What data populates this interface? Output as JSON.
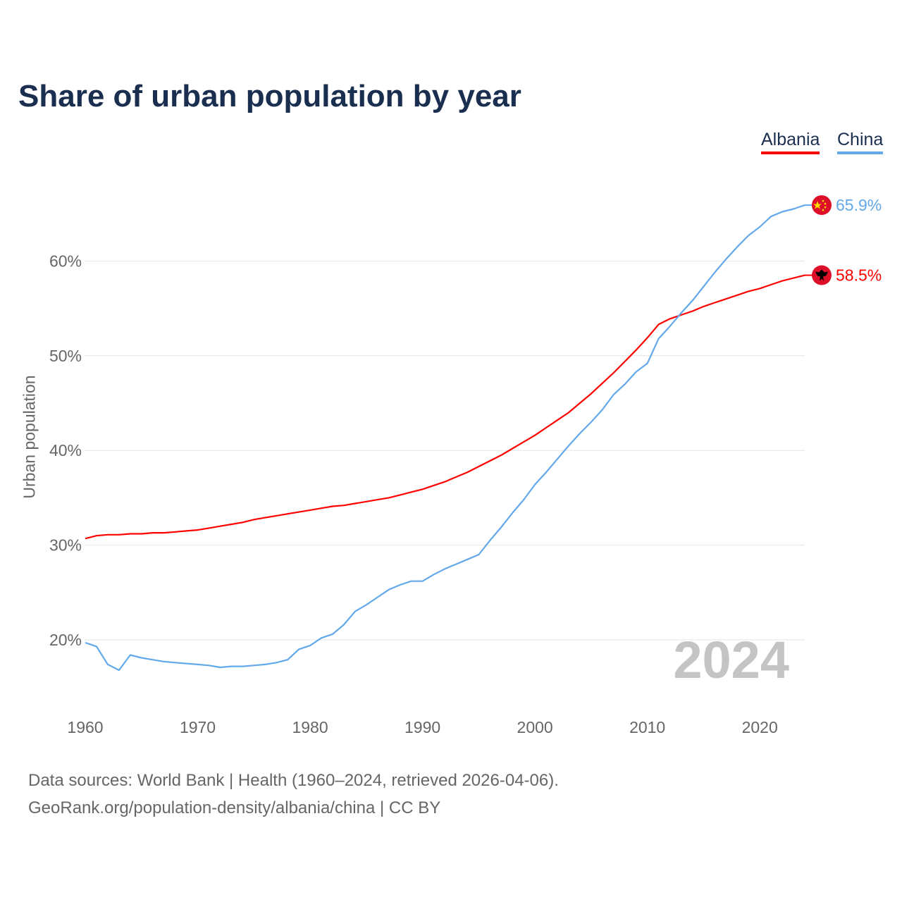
{
  "chart_data": {
    "type": "line",
    "title": "Share of urban population by year",
    "xlabel": "",
    "ylabel": "Urban population",
    "xlim": [
      1960,
      2024
    ],
    "ylim": [
      13,
      68
    ],
    "grid": true,
    "legend_placement": "top-right",
    "x_ticks": [
      1960,
      1970,
      1980,
      1990,
      2000,
      2010,
      2020
    ],
    "y_ticks": [
      20,
      30,
      40,
      50,
      60
    ],
    "y_tick_labels": [
      "20%",
      "30%",
      "40%",
      "50%",
      "60%"
    ],
    "year_watermark": "2024",
    "x": [
      1960,
      1961,
      1962,
      1963,
      1964,
      1965,
      1966,
      1967,
      1968,
      1969,
      1970,
      1971,
      1972,
      1973,
      1974,
      1975,
      1976,
      1977,
      1978,
      1979,
      1980,
      1981,
      1982,
      1983,
      1984,
      1985,
      1986,
      1987,
      1988,
      1989,
      1990,
      1991,
      1992,
      1993,
      1994,
      1995,
      1996,
      1997,
      1998,
      1999,
      2000,
      2001,
      2002,
      2003,
      2004,
      2005,
      2006,
      2007,
      2008,
      2009,
      2010,
      2011,
      2012,
      2013,
      2014,
      2015,
      2016,
      2017,
      2018,
      2019,
      2020,
      2021,
      2022,
      2023,
      2024
    ],
    "series": [
      {
        "name": "Albania",
        "color": "#ff0000",
        "end_label": "58.5%",
        "flag": "albania-flag",
        "values": [
          30.7,
          31.0,
          31.1,
          31.1,
          31.2,
          31.2,
          31.3,
          31.3,
          31.4,
          31.5,
          31.6,
          31.8,
          32.0,
          32.2,
          32.4,
          32.7,
          32.9,
          33.1,
          33.3,
          33.5,
          33.7,
          33.9,
          34.1,
          34.2,
          34.4,
          34.6,
          34.8,
          35.0,
          35.3,
          35.6,
          35.9,
          36.3,
          36.7,
          37.2,
          37.7,
          38.3,
          38.9,
          39.5,
          40.2,
          40.9,
          41.6,
          42.4,
          43.2,
          44.0,
          45.0,
          46.0,
          47.1,
          48.2,
          49.4,
          50.6,
          51.9,
          53.3,
          53.9,
          54.3,
          54.7,
          55.2,
          55.6,
          56.0,
          56.4,
          56.8,
          57.1,
          57.5,
          57.9,
          58.2,
          58.5
        ]
      },
      {
        "name": "China",
        "color": "#62a8ea",
        "end_label": "65.9%",
        "flag": "china-flag",
        "values": [
          19.7,
          19.3,
          17.4,
          16.8,
          18.4,
          18.1,
          17.9,
          17.7,
          17.6,
          17.5,
          17.4,
          17.3,
          17.1,
          17.2,
          17.2,
          17.3,
          17.4,
          17.6,
          17.9,
          19.0,
          19.4,
          20.2,
          20.6,
          21.6,
          23.0,
          23.7,
          24.5,
          25.3,
          25.8,
          26.2,
          26.2,
          26.9,
          27.5,
          28.0,
          28.5,
          29.0,
          30.5,
          31.9,
          33.4,
          34.8,
          36.4,
          37.7,
          39.1,
          40.5,
          41.8,
          43.0,
          44.3,
          45.9,
          47.0,
          48.3,
          49.2,
          51.8,
          53.1,
          54.5,
          55.8,
          57.3,
          58.8,
          60.2,
          61.5,
          62.7,
          63.6,
          64.7,
          65.2,
          65.5,
          65.9
        ]
      }
    ]
  },
  "footer": {
    "line1": "Data sources: World Bank | Health (1960–2024, retrieved 2026-04-06).",
    "line2": "GeoRank.org/population-density/albania/china | CC BY"
  }
}
